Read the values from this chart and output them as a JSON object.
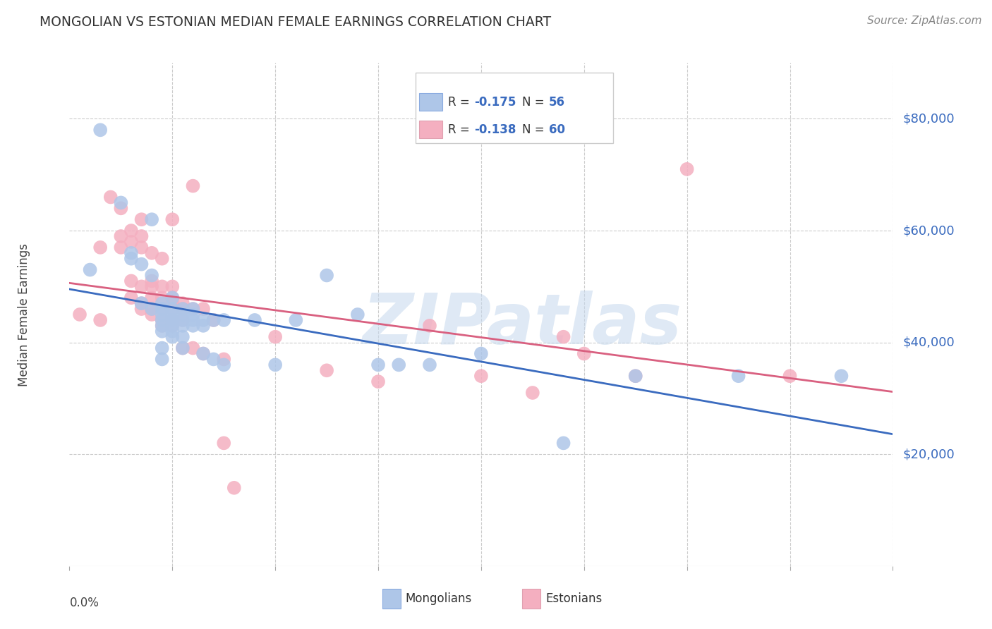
{
  "title": "MONGOLIAN VS ESTONIAN MEDIAN FEMALE EARNINGS CORRELATION CHART",
  "source": "Source: ZipAtlas.com",
  "ylabel": "Median Female Earnings",
  "ytick_labels": [
    "$20,000",
    "$40,000",
    "$60,000",
    "$80,000"
  ],
  "ytick_values": [
    20000,
    40000,
    60000,
    80000
  ],
  "xlim": [
    0.0,
    0.08
  ],
  "ylim": [
    0,
    90000
  ],
  "mongolian_color": "#aec6e8",
  "estonian_color": "#f4afc0",
  "mongolian_line_color": "#3a6bbf",
  "estonian_line_color": "#d96080",
  "watermark": "ZIPatlas",
  "mongolian_points": [
    [
      0.002,
      53000
    ],
    [
      0.003,
      78000
    ],
    [
      0.005,
      65000
    ],
    [
      0.006,
      56000
    ],
    [
      0.006,
      55000
    ],
    [
      0.007,
      54000
    ],
    [
      0.007,
      47000
    ],
    [
      0.008,
      62000
    ],
    [
      0.008,
      52000
    ],
    [
      0.008,
      46000
    ],
    [
      0.009,
      47000
    ],
    [
      0.009,
      46000
    ],
    [
      0.009,
      45000
    ],
    [
      0.009,
      44000
    ],
    [
      0.009,
      43000
    ],
    [
      0.009,
      42000
    ],
    [
      0.009,
      39000
    ],
    [
      0.009,
      37000
    ],
    [
      0.01,
      48000
    ],
    [
      0.01,
      46000
    ],
    [
      0.01,
      45000
    ],
    [
      0.01,
      44000
    ],
    [
      0.01,
      44000
    ],
    [
      0.01,
      43000
    ],
    [
      0.01,
      42000
    ],
    [
      0.01,
      41000
    ],
    [
      0.011,
      46000
    ],
    [
      0.011,
      45000
    ],
    [
      0.011,
      44000
    ],
    [
      0.011,
      43000
    ],
    [
      0.011,
      41000
    ],
    [
      0.011,
      39000
    ],
    [
      0.012,
      46000
    ],
    [
      0.012,
      45000
    ],
    [
      0.012,
      44000
    ],
    [
      0.012,
      43000
    ],
    [
      0.013,
      44000
    ],
    [
      0.013,
      43000
    ],
    [
      0.013,
      38000
    ],
    [
      0.014,
      44000
    ],
    [
      0.014,
      37000
    ],
    [
      0.015,
      44000
    ],
    [
      0.015,
      36000
    ],
    [
      0.018,
      44000
    ],
    [
      0.02,
      36000
    ],
    [
      0.022,
      44000
    ],
    [
      0.025,
      52000
    ],
    [
      0.028,
      45000
    ],
    [
      0.03,
      36000
    ],
    [
      0.032,
      36000
    ],
    [
      0.035,
      36000
    ],
    [
      0.04,
      38000
    ],
    [
      0.048,
      22000
    ],
    [
      0.055,
      34000
    ],
    [
      0.065,
      34000
    ],
    [
      0.075,
      34000
    ]
  ],
  "estonian_points": [
    [
      0.001,
      45000
    ],
    [
      0.003,
      57000
    ],
    [
      0.003,
      44000
    ],
    [
      0.004,
      66000
    ],
    [
      0.005,
      64000
    ],
    [
      0.005,
      59000
    ],
    [
      0.005,
      57000
    ],
    [
      0.006,
      60000
    ],
    [
      0.006,
      58000
    ],
    [
      0.006,
      51000
    ],
    [
      0.006,
      48000
    ],
    [
      0.007,
      62000
    ],
    [
      0.007,
      59000
    ],
    [
      0.007,
      57000
    ],
    [
      0.007,
      50000
    ],
    [
      0.007,
      47000
    ],
    [
      0.007,
      46000
    ],
    [
      0.008,
      56000
    ],
    [
      0.008,
      51000
    ],
    [
      0.008,
      50000
    ],
    [
      0.008,
      48000
    ],
    [
      0.008,
      46000
    ],
    [
      0.008,
      45000
    ],
    [
      0.009,
      55000
    ],
    [
      0.009,
      50000
    ],
    [
      0.009,
      48000
    ],
    [
      0.009,
      46000
    ],
    [
      0.009,
      44000
    ],
    [
      0.009,
      43000
    ],
    [
      0.01,
      62000
    ],
    [
      0.01,
      50000
    ],
    [
      0.01,
      48000
    ],
    [
      0.01,
      47000
    ],
    [
      0.01,
      46000
    ],
    [
      0.01,
      44000
    ],
    [
      0.01,
      43000
    ],
    [
      0.011,
      47000
    ],
    [
      0.011,
      46000
    ],
    [
      0.011,
      44000
    ],
    [
      0.011,
      39000
    ],
    [
      0.012,
      68000
    ],
    [
      0.012,
      46000
    ],
    [
      0.012,
      39000
    ],
    [
      0.013,
      46000
    ],
    [
      0.013,
      38000
    ],
    [
      0.014,
      44000
    ],
    [
      0.015,
      37000
    ],
    [
      0.015,
      22000
    ],
    [
      0.016,
      14000
    ],
    [
      0.02,
      41000
    ],
    [
      0.025,
      35000
    ],
    [
      0.03,
      33000
    ],
    [
      0.035,
      43000
    ],
    [
      0.04,
      34000
    ],
    [
      0.045,
      31000
    ],
    [
      0.048,
      41000
    ],
    [
      0.05,
      38000
    ],
    [
      0.055,
      34000
    ],
    [
      0.06,
      71000
    ],
    [
      0.07,
      34000
    ]
  ]
}
